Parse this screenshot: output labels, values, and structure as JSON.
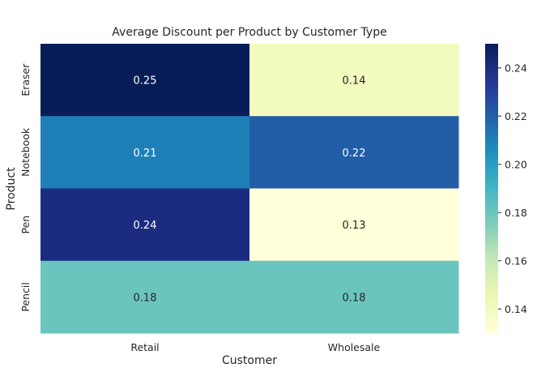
{
  "chart_data": {
    "type": "heatmap",
    "title": "Average Discount per Product by Customer Type",
    "xlabel": "Customer",
    "ylabel": "Product",
    "x_categories": [
      "Retail",
      "Wholesale"
    ],
    "y_categories": [
      "Eraser",
      "Notebook",
      "Pen",
      "Pencil"
    ],
    "values": [
      [
        0.25,
        0.14
      ],
      [
        0.21,
        0.22
      ],
      [
        0.24,
        0.13
      ],
      [
        0.18,
        0.18
      ]
    ],
    "colormap": "YlGnBu",
    "colorbar": {
      "range": [
        0.13,
        0.25
      ],
      "ticks": [
        0.14,
        0.16,
        0.18,
        0.2,
        0.22,
        0.24
      ],
      "tick_labels": [
        "0.14",
        "0.16",
        "0.18",
        "0.20",
        "0.22",
        "0.24"
      ]
    },
    "grid": false,
    "legend": "colorbar-right"
  }
}
